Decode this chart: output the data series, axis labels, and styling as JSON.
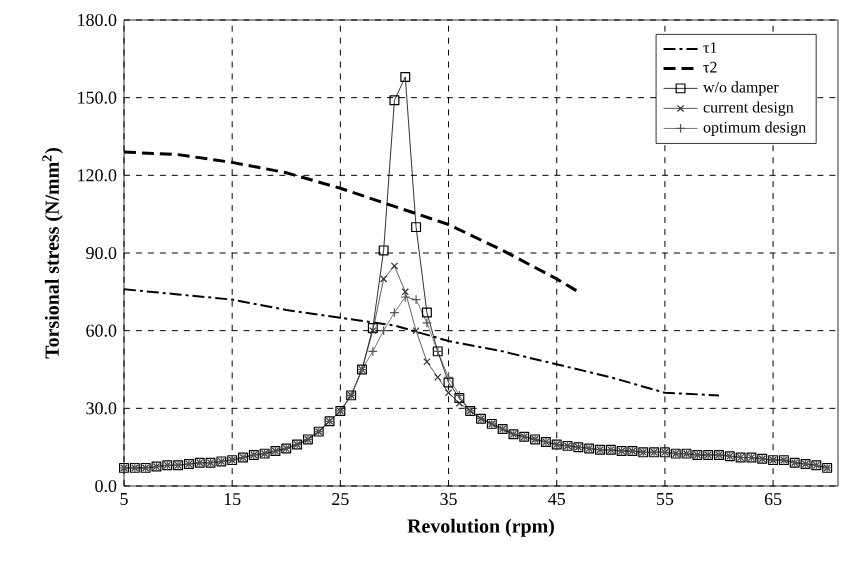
{
  "chart_data": {
    "type": "line",
    "xlabel": "Revolution (rpm)",
    "ylabel": "Torsional stress (N/mm$^{2}$)",
    "xlim": [
      5,
      71
    ],
    "xticks": [
      5,
      15,
      25,
      35,
      45,
      55,
      65
    ],
    "ylim": [
      0,
      180
    ],
    "yticks": [
      {
        "value": 0,
        "label": "0.0"
      },
      {
        "value": 30,
        "label": "30.0"
      },
      {
        "value": 60,
        "label": "60.0"
      },
      {
        "value": 90,
        "label": "90.0"
      },
      {
        "value": 120,
        "label": "120.0"
      },
      {
        "value": 150,
        "label": "150.0"
      },
      {
        "value": 180,
        "label": "180.0"
      }
    ],
    "grid": true,
    "legend": "top right",
    "series": [
      {
        "name": "τ1",
        "color": "#000000",
        "line_style": "dashdot",
        "marker": "none",
        "x": [
          5,
          10,
          15,
          20,
          25,
          30,
          35,
          40,
          45,
          50,
          55,
          60
        ],
        "values": [
          76,
          74,
          72,
          68,
          65,
          62,
          56,
          52,
          47,
          42,
          36,
          35
        ]
      },
      {
        "name": "τ2",
        "color": "#000000",
        "line_style": "dashed",
        "marker": "none",
        "x": [
          5,
          10,
          15,
          20,
          25,
          30,
          35,
          40,
          45,
          47
        ],
        "values": [
          129,
          128,
          125,
          121,
          115,
          108,
          101,
          91,
          80,
          75
        ]
      },
      {
        "name": "w/o damper",
        "color": "#000000",
        "line_style": "solid",
        "marker": "square",
        "x": [
          5,
          6,
          7,
          8,
          9,
          10,
          11,
          12,
          13,
          14,
          15,
          16,
          17,
          18,
          19,
          20,
          21,
          22,
          23,
          24,
          25,
          26,
          27,
          28,
          29,
          30,
          31,
          32,
          33,
          34,
          35,
          36,
          37,
          38,
          39,
          40,
          41,
          42,
          43,
          44,
          45,
          46,
          47,
          48,
          49,
          50,
          51,
          52,
          53,
          54,
          55,
          56,
          57,
          58,
          59,
          60,
          61,
          62,
          63,
          64,
          65,
          66,
          67,
          68,
          69,
          70
        ],
        "values": [
          7,
          7,
          7,
          7.5,
          8,
          8,
          8.5,
          9,
          9,
          9.5,
          10,
          11,
          12,
          12.5,
          13.5,
          14.5,
          16,
          18,
          21,
          25,
          29,
          35,
          45,
          61,
          91,
          149,
          158,
          100,
          67,
          52,
          40,
          34,
          29,
          26,
          24,
          22,
          20,
          19,
          18,
          17,
          16,
          15.5,
          15,
          14.5,
          14,
          14,
          13.5,
          13.5,
          13,
          13,
          13,
          12.5,
          12.5,
          12,
          12,
          12,
          11.5,
          11,
          11,
          10.5,
          10,
          10,
          9,
          8.5,
          8,
          7
        ]
      },
      {
        "name": "current design",
        "color": "#333333",
        "line_style": "solid",
        "marker": "cross",
        "x": [
          5,
          6,
          7,
          8,
          9,
          10,
          11,
          12,
          13,
          14,
          15,
          16,
          17,
          18,
          19,
          20,
          21,
          22,
          23,
          24,
          25,
          26,
          27,
          28,
          29,
          30,
          31,
          32,
          33,
          34,
          35,
          36,
          37,
          38,
          39,
          40,
          41,
          42,
          43,
          44,
          45,
          46,
          47,
          48,
          49,
          50,
          51,
          52,
          53,
          54,
          55,
          56,
          57,
          58,
          59,
          60,
          61,
          62,
          63,
          64,
          65,
          66,
          67,
          68,
          69,
          70
        ],
        "values": [
          7,
          7,
          7,
          7.5,
          8,
          8,
          8.5,
          9,
          9,
          9.5,
          10,
          11,
          12,
          12.5,
          13.5,
          14.5,
          16,
          18,
          21,
          25,
          29,
          35,
          45,
          60,
          80,
          85,
          75,
          60,
          48,
          42,
          36,
          32,
          29,
          26,
          24,
          22,
          20,
          19,
          18,
          17,
          16,
          15.5,
          15,
          14.5,
          14,
          14,
          13.5,
          13.5,
          13,
          13,
          13,
          12.5,
          12.5,
          12,
          12,
          12,
          11.5,
          11,
          11,
          10.5,
          10,
          10,
          9,
          8.5,
          8,
          7
        ]
      },
      {
        "name": "optimum design",
        "color": "#555555",
        "line_style": "solid",
        "marker": "plus",
        "x": [
          5,
          6,
          7,
          8,
          9,
          10,
          11,
          12,
          13,
          14,
          15,
          16,
          17,
          18,
          19,
          20,
          21,
          22,
          23,
          24,
          25,
          26,
          27,
          28,
          29,
          30,
          31,
          32,
          33,
          34,
          35,
          36,
          37,
          38,
          39,
          40,
          41,
          42,
          43,
          44,
          45,
          46,
          47,
          48,
          49,
          50,
          51,
          52,
          53,
          54,
          55,
          56,
          57,
          58,
          59,
          60,
          61,
          62,
          63,
          64,
          65,
          66,
          67,
          68,
          69,
          70
        ],
        "values": [
          7,
          7,
          7,
          7.5,
          8,
          8,
          8.5,
          9,
          9,
          9.5,
          10,
          11,
          12,
          12.5,
          13.5,
          14.5,
          16,
          18,
          21,
          25,
          29,
          35,
          45,
          52,
          60,
          67,
          73,
          72,
          63,
          52,
          42,
          35,
          29,
          26,
          24,
          22,
          20,
          19,
          18,
          17,
          16,
          15.5,
          15,
          14.5,
          14,
          14,
          13.5,
          13.5,
          13,
          13,
          13,
          12.5,
          12.5,
          12,
          12,
          12,
          11.5,
          11,
          11,
          10.5,
          10,
          10,
          9,
          8.5,
          8,
          7
        ]
      }
    ]
  }
}
